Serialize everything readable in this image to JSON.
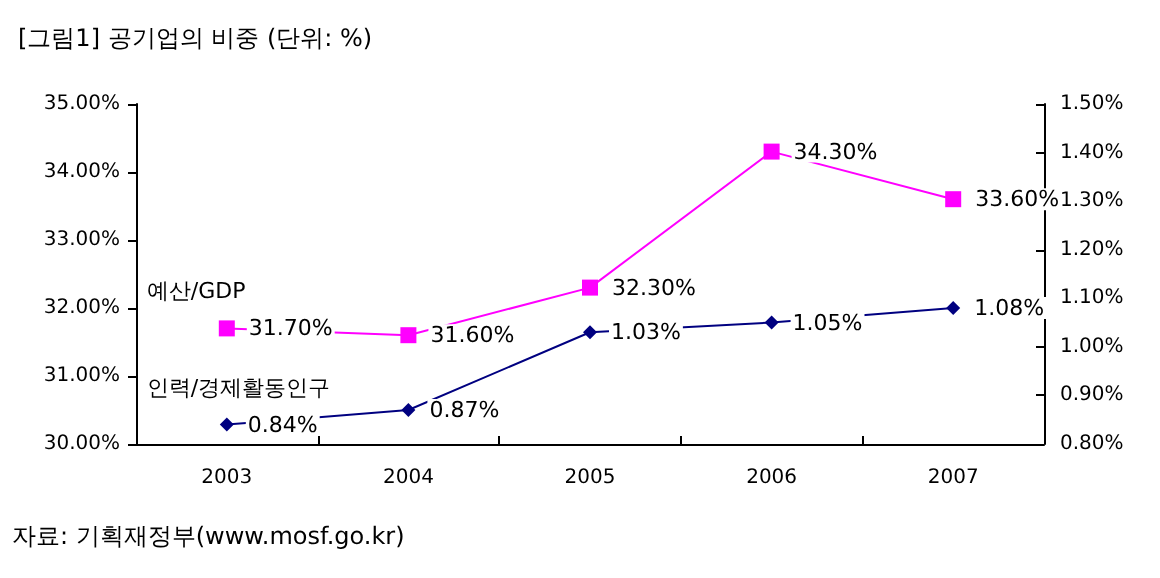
{
  "chart_data": {
    "type": "line",
    "title": "[그림1] 공기업의 비중 (단위: %)",
    "annotations": [
      "자료: 기획재정부(www.mosf.go.kr)"
    ],
    "categories": [
      "2003",
      "2004",
      "2005",
      "2006",
      "2007"
    ],
    "series": [
      {
        "name": "예산/GDP",
        "color": "#ff00ff",
        "marker": "square",
        "values": [
          31.7,
          31.6,
          32.3,
          34.3,
          33.6
        ],
        "value_labels": [
          "31.70%",
          "31.60%",
          "32.30%",
          "34.30%",
          "33.60%"
        ]
      },
      {
        "name": "인력/경제활동인구",
        "color": "#000080",
        "marker": "diamond",
        "axis": "y2",
        "values": [
          0.84,
          0.87,
          1.03,
          1.05,
          1.08
        ],
        "value_labels": [
          "0.84%",
          "0.87%",
          "1.03%",
          "1.05%",
          "1.08%"
        ]
      }
    ],
    "ylim": [
      30,
      35
    ],
    "yticks": [
      {
        "value": 30,
        "label": "30.00%"
      },
      {
        "value": 31,
        "label": "31.00%"
      },
      {
        "value": 32,
        "label": "32.00%"
      },
      {
        "value": 33,
        "label": "33.00%"
      },
      {
        "value": 34,
        "label": "34.00%"
      },
      {
        "value": 35,
        "label": "35.00%"
      }
    ],
    "y2lim": [
      0.8,
      1.5
    ],
    "y2ticks": [
      {
        "value": 0.8,
        "label": "0.80%"
      },
      {
        "value": 0.9,
        "label": "0.90%"
      },
      {
        "value": 1.0,
        "label": "1.00%"
      },
      {
        "value": 1.1,
        "label": "1.10%"
      },
      {
        "value": 1.2,
        "label": "1.20%"
      },
      {
        "value": 1.3,
        "label": "1.30%"
      },
      {
        "value": 1.4,
        "label": "1.40%"
      },
      {
        "value": 1.5,
        "label": "1.50%"
      }
    ],
    "grid": false,
    "legend": false
  }
}
